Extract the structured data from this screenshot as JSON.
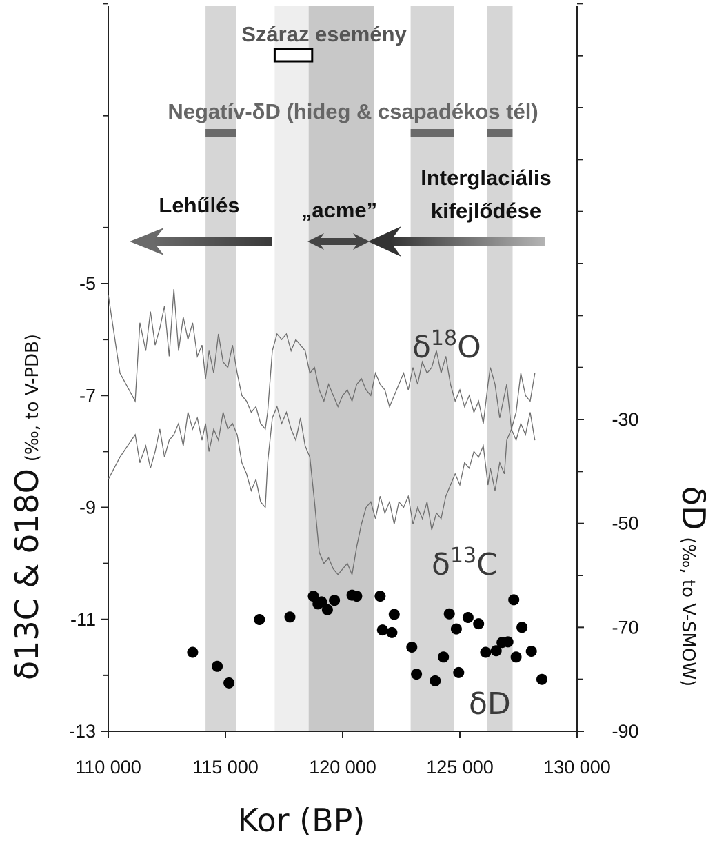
{
  "chart_data": {
    "type": "line",
    "xlabel": "Kor (BP)",
    "xlim": [
      110000,
      130000
    ],
    "x_ticks": [
      110000,
      115000,
      120000,
      125000,
      130000
    ],
    "x_tick_labels": [
      "110 000",
      "115 000",
      "120 000",
      "125 000",
      "130 000"
    ],
    "y_left": {
      "label_main": "δ13C & δ18O",
      "label_unit": "(‰, to V-PDB)",
      "lim": [
        -13,
        -5
      ],
      "ticks": [
        -5,
        -7,
        -9,
        -11,
        -13
      ],
      "tick_labels": [
        "-5",
        "-7",
        "-9",
        "-11",
        "-13"
      ]
    },
    "y_right": {
      "label_main": "δD",
      "label_unit": "(‰, to V-SMOW)",
      "lim": [
        -90,
        -30
      ],
      "ticks": [
        -30,
        -50,
        -70,
        -90
      ],
      "tick_labels": [
        "-30",
        "-50",
        "-70",
        "-90"
      ]
    },
    "shaded_bands": [
      {
        "x": [
          114150,
          115450
        ],
        "shade": "#d6d6d6"
      },
      {
        "x": [
          117100,
          118550
        ],
        "shade": "#eeeeee"
      },
      {
        "x": [
          118550,
          121350
        ],
        "shade": "#c8c8c8"
      },
      {
        "x": [
          122900,
          124750
        ],
        "shade": "#d6d6d6"
      },
      {
        "x": [
          126150,
          127250
        ],
        "shade": "#d6d6d6"
      }
    ],
    "series": [
      {
        "name": "δ18O",
        "label_base": "δ",
        "label_sup": "18",
        "label_end": "O",
        "axis": "left",
        "color": "#6e6e6e",
        "x": [
          110000,
          110500,
          111150,
          111350,
          111600,
          111800,
          112000,
          112200,
          112400,
          112600,
          112800,
          113000,
          113200,
          113400,
          113600,
          113800,
          114000,
          114150,
          114300,
          114500,
          114700,
          114900,
          115100,
          115300,
          115500,
          115700,
          115900,
          116100,
          116300,
          116500,
          116700,
          116800,
          117000,
          117200,
          117400,
          117600,
          117800,
          118000,
          118200,
          118400,
          118600,
          118800,
          119000,
          119200,
          119400,
          119600,
          119800,
          120000,
          120200,
          120400,
          120600,
          120800,
          121000,
          121200,
          121400,
          121600,
          121800,
          122000,
          122200,
          122400,
          122600,
          122800,
          123000,
          123200,
          123400,
          123600,
          123800,
          124000,
          124200,
          124400,
          124600,
          124800,
          125000,
          125200,
          125400,
          125600,
          125800,
          126000,
          126200,
          126300,
          126500,
          126700,
          126900,
          127000,
          127200,
          127400,
          127600,
          127800,
          128000,
          128200
        ],
        "y": [
          -5.2,
          -6.6,
          -7.1,
          -5.7,
          -6.2,
          -5.5,
          -6.1,
          -5.8,
          -5.4,
          -6.3,
          -5.1,
          -6.2,
          -5.6,
          -6.0,
          -5.7,
          -6.3,
          -6.1,
          -6.7,
          -6.2,
          -6.6,
          -5.9,
          -6.4,
          -6.5,
          -6.1,
          -6.6,
          -7.0,
          -7.1,
          -7.3,
          -7.2,
          -7.5,
          -7.6,
          -7.3,
          -6.2,
          -5.9,
          -6.0,
          -5.9,
          -6.2,
          -6.0,
          -6.1,
          -6.2,
          -6.6,
          -6.5,
          -6.9,
          -7.1,
          -6.8,
          -7.0,
          -7.2,
          -7.0,
          -6.9,
          -7.1,
          -6.8,
          -6.7,
          -6.9,
          -7.0,
          -6.6,
          -6.8,
          -6.9,
          -7.2,
          -7.0,
          -6.8,
          -6.6,
          -6.9,
          -6.5,
          -6.8,
          -6.4,
          -6.6,
          -6.5,
          -6.2,
          -6.6,
          -6.3,
          -6.8,
          -7.1,
          -6.9,
          -7.2,
          -7.0,
          -7.3,
          -7.1,
          -7.5,
          -6.8,
          -6.5,
          -6.8,
          -7.4,
          -7.0,
          -6.8,
          -7.6,
          -7.3,
          -6.6,
          -7.0,
          -7.1,
          -6.6
        ]
      },
      {
        "name": "δ13C",
        "label_base": "δ",
        "label_sup": "13",
        "label_end": "C",
        "axis": "left",
        "color": "#6e6e6e",
        "x": [
          110000,
          110500,
          111150,
          111350,
          111600,
          111800,
          112000,
          112200,
          112400,
          112600,
          112800,
          113000,
          113200,
          113400,
          113600,
          113800,
          114000,
          114150,
          114300,
          114500,
          114700,
          114900,
          115100,
          115300,
          115500,
          115700,
          115900,
          116100,
          116300,
          116500,
          116700,
          116800,
          117000,
          117200,
          117400,
          117600,
          117800,
          118000,
          118200,
          118400,
          118600,
          118800,
          119000,
          119200,
          119400,
          119600,
          119800,
          120000,
          120200,
          120400,
          120600,
          120800,
          121000,
          121200,
          121400,
          121600,
          121800,
          122000,
          122200,
          122400,
          122600,
          122800,
          123000,
          123200,
          123400,
          123600,
          123800,
          124000,
          124200,
          124400,
          124600,
          124800,
          125000,
          125200,
          125400,
          125600,
          125800,
          126000,
          126200,
          126300,
          126500,
          126700,
          126900,
          127000,
          127200,
          127400,
          127600,
          127800,
          128000,
          128200
        ],
        "y": [
          -8.5,
          -8.1,
          -7.7,
          -8.2,
          -7.9,
          -8.3,
          -8.0,
          -7.6,
          -8.1,
          -7.8,
          -7.7,
          -7.5,
          -7.9,
          -7.3,
          -7.6,
          -7.4,
          -7.8,
          -7.5,
          -8.0,
          -7.6,
          -7.8,
          -7.3,
          -7.6,
          -7.5,
          -7.7,
          -8.2,
          -8.4,
          -8.7,
          -8.5,
          -8.9,
          -9.0,
          -8.2,
          -7.4,
          -7.2,
          -7.5,
          -7.3,
          -7.6,
          -7.8,
          -7.4,
          -7.9,
          -8.1,
          -8.9,
          -9.8,
          -10.0,
          -9.9,
          -10.1,
          -10.2,
          -10.1,
          -10.0,
          -10.2,
          -9.7,
          -9.3,
          -9.0,
          -8.9,
          -9.2,
          -8.8,
          -9.1,
          -8.9,
          -9.3,
          -8.9,
          -9.0,
          -8.8,
          -9.3,
          -9.0,
          -9.2,
          -8.9,
          -9.4,
          -9.1,
          -9.2,
          -8.8,
          -8.6,
          -8.4,
          -8.6,
          -8.2,
          -8.3,
          -8.0,
          -8.1,
          -7.9,
          -8.6,
          -8.3,
          -8.7,
          -8.2,
          -8.4,
          -7.8,
          -7.6,
          -7.8,
          -7.5,
          -7.7,
          -7.3,
          -7.8
        ]
      },
      {
        "name": "δD",
        "label_base": "δD",
        "axis": "right",
        "marker": "circle",
        "color": "#000000",
        "x": [
          113600,
          114650,
          115150,
          116450,
          117750,
          118750,
          118950,
          119100,
          119350,
          119650,
          120400,
          120600,
          121600,
          121700,
          122100,
          122200,
          122950,
          123150,
          123950,
          124300,
          124550,
          124850,
          124950,
          125350,
          125800,
          126100,
          126550,
          126800,
          127050,
          127300,
          127400,
          127650,
          128050,
          128500
        ],
        "y": [
          -74.8,
          -77.5,
          -80.7,
          -68.5,
          -68.0,
          -64.0,
          -65.5,
          -65.1,
          -66.6,
          -64.8,
          -63.8,
          -64.0,
          -64.0,
          -70.5,
          -71.0,
          -67.5,
          -73.8,
          -79.0,
          -80.3,
          -75.7,
          -67.4,
          -70.3,
          -78.7,
          -68.1,
          -69.3,
          -74.8,
          -74.5,
          -72.9,
          -72.8,
          -64.7,
          -75.7,
          -70.0,
          -74.6,
          -80.0
        ]
      }
    ],
    "annotations": {
      "dry_event": "Száraz esemény",
      "dry_event_x": [
        117100,
        118700
      ],
      "negative_dd": "Negatív-δD (hideg & csapadékos tél)",
      "negative_dd_bars": [
        [
          114150,
          115450
        ],
        [
          122900,
          124750
        ],
        [
          126150,
          127250
        ]
      ],
      "cooling": "Lehűlés",
      "acme": "„acme”",
      "interglacial_line1": "Interglaciális",
      "interglacial_line2": "kifejlődése"
    }
  }
}
